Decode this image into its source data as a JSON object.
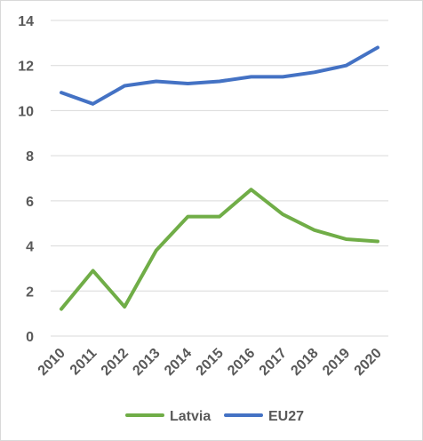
{
  "chart_data": {
    "type": "line",
    "title": "",
    "xlabel": "",
    "ylabel": "",
    "categories": [
      "2010",
      "2011",
      "2012",
      "2013",
      "2014",
      "2015",
      "2016",
      "2017",
      "2018",
      "2019",
      "2020"
    ],
    "ylim": [
      0,
      14
    ],
    "yticks": [
      0,
      2,
      4,
      6,
      8,
      10,
      12,
      14
    ],
    "grid": true,
    "legend_position": "bottom",
    "series": [
      {
        "name": "Latvia",
        "color": "#70ad47",
        "values": [
          1.2,
          2.9,
          1.3,
          3.8,
          5.3,
          5.3,
          6.5,
          5.4,
          4.7,
          4.3,
          4.2
        ]
      },
      {
        "name": "EU27",
        "color": "#4472c4",
        "values": [
          10.8,
          10.3,
          11.1,
          11.3,
          11.2,
          11.3,
          11.5,
          11.5,
          11.7,
          12.0,
          12.8
        ]
      }
    ]
  }
}
